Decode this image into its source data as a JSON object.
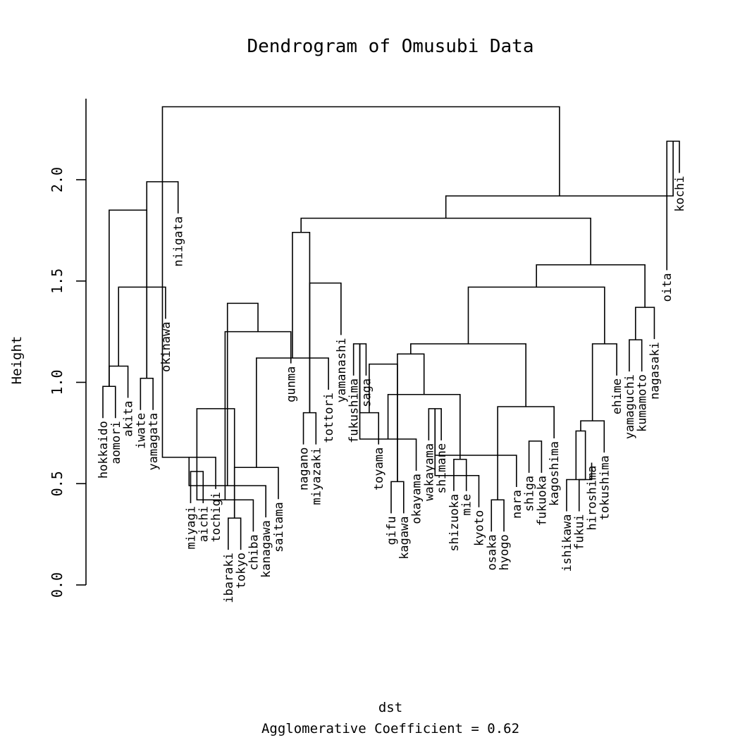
{
  "chart_data": {
    "type": "dendrogram",
    "title": "Dendrogram of Omusubi Data",
    "ylabel": "Height",
    "xlabel": "dst",
    "sub": "Agglomerative Coefficient =  0.62",
    "ylim": [
      0,
      2.4
    ],
    "yticks": [
      0,
      0.5,
      1,
      1.5,
      2
    ],
    "ytick_labels": [
      "0.0",
      "0.5",
      "1.0",
      "1.5",
      "2.0"
    ],
    "leaves": [
      {
        "name": "hokkaido",
        "height": 0.98
      },
      {
        "name": "aomori",
        "height": 0.98
      },
      {
        "name": "akita",
        "height": 1.08
      },
      {
        "name": "iwate",
        "height": 1.02
      },
      {
        "name": "yamagata",
        "height": 1.02
      },
      {
        "name": "okinawa",
        "height": 1.47
      },
      {
        "name": "niigata",
        "height": 1.99
      },
      {
        "name": "miyagi",
        "height": 0.56
      },
      {
        "name": "aichi",
        "height": 0.56
      },
      {
        "name": "tochigi",
        "height": 0.63
      },
      {
        "name": "ibaraki",
        "height": 0.33
      },
      {
        "name": "tokyo",
        "height": 0.33
      },
      {
        "name": "chiba",
        "height": 0.42
      },
      {
        "name": "kanagawa",
        "height": 0.49
      },
      {
        "name": "saitama",
        "height": 0.58
      },
      {
        "name": "gunma",
        "height": 1.25
      },
      {
        "name": "nagano",
        "height": 0.85
      },
      {
        "name": "miyazaki",
        "height": 0.85
      },
      {
        "name": "tottori",
        "height": 1.12
      },
      {
        "name": "yamanashi",
        "height": 1.39
      },
      {
        "name": "fukushima",
        "height": 1.19
      },
      {
        "name": "saga",
        "height": 1.19
      },
      {
        "name": "toyama",
        "height": 0.85
      },
      {
        "name": "gifu",
        "height": 0.51
      },
      {
        "name": "kagawa",
        "height": 0.51
      },
      {
        "name": "okayama",
        "height": 0.72
      },
      {
        "name": "wakayama",
        "height": 0.87
      },
      {
        "name": "shimane",
        "height": 0.87
      },
      {
        "name": "shizuoka",
        "height": 0.62
      },
      {
        "name": "mie",
        "height": 0.62
      },
      {
        "name": "kyoto",
        "height": 0.54
      },
      {
        "name": "osaka",
        "height": 0.42
      },
      {
        "name": "hyogo",
        "height": 0.42
      },
      {
        "name": "nara",
        "height": 0.64
      },
      {
        "name": "shiga",
        "height": 0.71
      },
      {
        "name": "fukuoka",
        "height": 0.71
      },
      {
        "name": "kagoshima",
        "height": 0.88
      },
      {
        "name": "ishikawa",
        "height": 0.52
      },
      {
        "name": "fukui",
        "height": 0.52
      },
      {
        "name": "hiroshima",
        "height": 0.76
      },
      {
        "name": "tokushima",
        "height": 0.81
      },
      {
        "name": "ehime",
        "height": 1.19
      },
      {
        "name": "yamaguchi",
        "height": 1.21
      },
      {
        "name": "kumamoto",
        "height": 1.21
      },
      {
        "name": "nagasaki",
        "height": 1.37
      },
      {
        "name": "oita",
        "height": 1.71
      },
      {
        "name": "kochi",
        "height": 2.19
      }
    ],
    "merges": [
      [
        0,
        1,
        0.98
      ],
      [
        2,
        0,
        1.08
      ],
      [
        3,
        4,
        1.02
      ],
      [
        5,
        2,
        1.47
      ],
      [
        1,
        3,
        1.85
      ],
      [
        6,
        4,
        1.99
      ],
      [
        7,
        8,
        0.56
      ],
      [
        9,
        6,
        0.63
      ],
      [
        10,
        11,
        0.33
      ],
      [
        12,
        8,
        0.42
      ],
      [
        13,
        9,
        0.49
      ],
      [
        14,
        10,
        0.58
      ],
      [
        7,
        11,
        0.87
      ],
      [
        15,
        12,
        1.25
      ],
      [
        16,
        17,
        0.85
      ],
      [
        18,
        14,
        1.12
      ],
      [
        13,
        15,
        1.39
      ],
      [
        19,
        16,
        1.49
      ],
      [
        20,
        21,
        1.19
      ],
      [
        17,
        18,
        1.74
      ],
      [
        23,
        24,
        0.51
      ],
      [
        25,
        20,
        0.72
      ],
      [
        22,
        21,
        0.85
      ],
      [
        26,
        27,
        0.87
      ],
      [
        22,
        23,
        1.09
      ],
      [
        28,
        29,
        0.62
      ],
      [
        31,
        32,
        0.42
      ],
      [
        30,
        26,
        0.54
      ],
      [
        33,
        27,
        0.64
      ],
      [
        25,
        28,
        0.94
      ],
      [
        24,
        25,
        1.14
      ],
      [
        34,
        35,
        0.71
      ],
      [
        31,
        36,
        0.88
      ],
      [
        24,
        31,
        1.19
      ],
      [
        38,
        39,
        0.52
      ],
      [
        37,
        38,
        0.52
      ],
      [
        37,
        39,
        0.76
      ],
      [
        37,
        40,
        0.81
      ],
      [
        37,
        41,
        1.19
      ],
      [
        24,
        37,
        1.47
      ],
      [
        42,
        43,
        1.21
      ],
      [
        42,
        44,
        1.37
      ],
      [
        24,
        42,
        1.58
      ],
      [
        17,
        24,
        1.81
      ],
      [
        45,
        46,
        2.19
      ],
      [
        17,
        45,
        1.92
      ],
      [
        4,
        17,
        2.36
      ]
    ]
  }
}
